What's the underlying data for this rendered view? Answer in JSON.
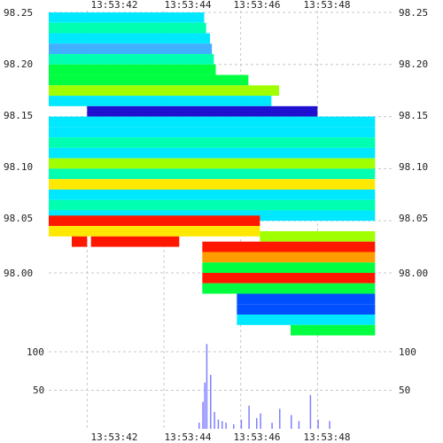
{
  "chart_data": [
    {
      "type": "heatmap",
      "title": "",
      "xlabel": "",
      "ylabel": "",
      "x_ticks": [
        "13:53:42",
        "13:53:44",
        "13:53:46",
        "13:53:48"
      ],
      "y_ticks": [
        "98.25",
        "98.20",
        "98.15",
        "98.10",
        "98.05",
        "98.00"
      ],
      "xlim": [
        "13:53:41.0",
        "13:53:50.0"
      ],
      "ylim": [
        97.97,
        98.25
      ],
      "grid": true,
      "colors": {
        "cyan": "#00e8ff",
        "teal": "#00ffb0",
        "green": "#00ff40",
        "lime": "#a0ff00",
        "yellow": "#ffe800",
        "orange": "#ff9c00",
        "red": "#ff1800",
        "blue": "#0050ff",
        "indigo": "#2010d0",
        "violet": "#8000ff",
        "skyblue": "#40b0ff"
      },
      "segments": [
        {
          "price": 98.245,
          "t0": 41.0,
          "t1": 45.05,
          "color": "#00e8ff"
        },
        {
          "price": 98.235,
          "t0": 41.0,
          "t1": 45.1,
          "color": "#00ffb0"
        },
        {
          "price": 98.225,
          "t0": 41.0,
          "t1": 45.2,
          "color": "#00e8ff"
        },
        {
          "price": 98.215,
          "t0": 41.0,
          "t1": 45.25,
          "color": "#40b0ff"
        },
        {
          "price": 98.205,
          "t0": 41.0,
          "t1": 45.3,
          "color": "#00ffb0"
        },
        {
          "price": 98.195,
          "t0": 41.0,
          "t1": 45.35,
          "color": "#00ff40"
        },
        {
          "price": 98.185,
          "t0": 41.0,
          "t1": 46.2,
          "color": "#00ff40"
        },
        {
          "price": 98.175,
          "t0": 41.0,
          "t1": 47.0,
          "color": "#a0ff00"
        },
        {
          "price": 98.165,
          "t0": 41.0,
          "t1": 46.8,
          "color": "#00e8ff"
        },
        {
          "price": 98.155,
          "t0": 42.0,
          "t1": 48.0,
          "color": "#2010d0"
        },
        {
          "price": 98.145,
          "t0": 41.0,
          "t1": 49.5,
          "color": "#00e8ff"
        },
        {
          "price": 98.135,
          "t0": 41.0,
          "t1": 49.5,
          "color": "#00e8ff"
        },
        {
          "price": 98.125,
          "t0": 41.0,
          "t1": 49.5,
          "color": "#00ffb0"
        },
        {
          "price": 98.115,
          "t0": 41.0,
          "t1": 49.5,
          "color": "#00e8ff"
        },
        {
          "price": 98.105,
          "t0": 41.0,
          "t1": 49.5,
          "color": "#a0ff00"
        },
        {
          "price": 98.095,
          "t0": 41.0,
          "t1": 49.5,
          "color": "#00ffb0"
        },
        {
          "price": 98.085,
          "t0": 41.0,
          "t1": 49.5,
          "color": "#ffe800"
        },
        {
          "price": 98.075,
          "t0": 41.0,
          "t1": 49.5,
          "color": "#00e8ff"
        },
        {
          "price": 98.065,
          "t0": 41.0,
          "t1": 49.5,
          "color": "#00ffb0"
        },
        {
          "price": 98.055,
          "t0": 41.0,
          "t1": 49.5,
          "color": "#00e8ff"
        },
        {
          "price": 98.05,
          "t0": 41.0,
          "t1": 46.5,
          "color": "#ff1800"
        },
        {
          "price": 98.04,
          "t0": 41.0,
          "t1": 46.5,
          "color": "#ffe800"
        },
        {
          "price": 98.035,
          "t0": 46.5,
          "t1": 49.5,
          "color": "#a0ff00"
        },
        {
          "price": 98.03,
          "t0": 41.6,
          "t1": 42.0,
          "color": "#ff1800"
        },
        {
          "price": 98.03,
          "t0": 42.1,
          "t1": 44.4,
          "color": "#ff1800"
        },
        {
          "price": 98.025,
          "t0": 45.0,
          "t1": 49.5,
          "color": "#ff1800"
        },
        {
          "price": 98.015,
          "t0": 45.0,
          "t1": 49.5,
          "color": "#ff9c00"
        },
        {
          "price": 98.005,
          "t0": 45.0,
          "t1": 49.5,
          "color": "#00ff40"
        },
        {
          "price": 97.995,
          "t0": 45.0,
          "t1": 49.5,
          "color": "#ff1800"
        },
        {
          "price": 97.985,
          "t0": 45.0,
          "t1": 49.5,
          "color": "#00ff40"
        },
        {
          "price": 97.975,
          "t0": 45.9,
          "t1": 49.5,
          "color": "#0050ff"
        },
        {
          "price": 97.965,
          "t0": 45.9,
          "t1": 49.5,
          "color": "#0050ff"
        },
        {
          "price": 97.955,
          "t0": 45.9,
          "t1": 49.5,
          "color": "#00e8ff"
        },
        {
          "price": 97.945,
          "t0": 47.3,
          "t1": 49.5,
          "color": "#00ff40"
        }
      ]
    },
    {
      "type": "bar",
      "y_ticks": [
        "100",
        "50"
      ],
      "ylim": [
        0,
        125
      ],
      "grid": true,
      "color": "#8080ff",
      "x": [
        44.9,
        45.0,
        45.05,
        45.1,
        45.2,
        45.3,
        45.4,
        45.5,
        45.6,
        45.8,
        46.0,
        46.2,
        46.4,
        46.5,
        46.8,
        47.0,
        47.3,
        47.5,
        47.8,
        48.0,
        48.3
      ],
      "values": [
        8,
        35,
        60,
        110,
        70,
        22,
        12,
        10,
        8,
        6,
        12,
        30,
        14,
        20,
        8,
        26,
        18,
        10,
        44,
        12,
        10
      ]
    }
  ]
}
